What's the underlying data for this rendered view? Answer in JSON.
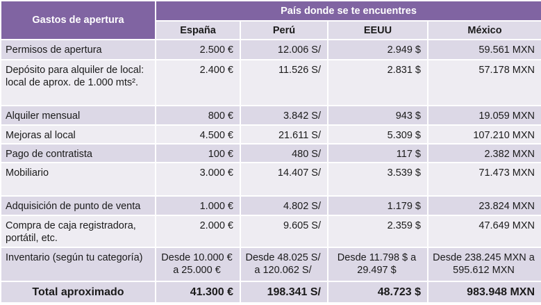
{
  "table": {
    "corner_label": "Gastos de apertura",
    "group_label": "País donde se te encuentres",
    "countries": [
      "España",
      "Perú",
      "EEUU",
      "México"
    ],
    "rows": [
      {
        "label": "Permisos de apertura",
        "values": [
          "2.500 €",
          "12.006 S/",
          "2.949 $",
          "59.561 MXN"
        ]
      },
      {
        "label": "Depósito para alquiler de local: local de aprox. de 1.000 mts².",
        "values": [
          "2.400 €",
          "11.526 S/",
          "2.831 $",
          "57.178 MXN"
        ]
      },
      {
        "label": "Alquiler mensual",
        "values": [
          "800 €",
          "3.842 S/",
          "943 $",
          "19.059 MXN"
        ]
      },
      {
        "label": "Mejoras al local",
        "values": [
          "4.500 €",
          "21.611 S/",
          "5.309 $",
          "107.210 MXN"
        ]
      },
      {
        "label": "Pago de contratista",
        "values": [
          "100 €",
          "480 S/",
          "117 $",
          "2.382 MXN"
        ]
      },
      {
        "label": "Mobiliario",
        "values": [
          "3.000 €",
          "14.407 S/",
          "3.539 $",
          "71.473 MXN"
        ]
      },
      {
        "label": "Adquisición de punto de venta",
        "values": [
          "1.000 €",
          "4.802 S/",
          "1.179 $",
          "23.824 MXN"
        ]
      },
      {
        "label": "Compra de caja registradora, portátil, etc.",
        "values": [
          "2.000 €",
          "9.605 S/",
          "2.359 $",
          "47.649 MXN"
        ]
      },
      {
        "label": "Inventario (según tu categoría)",
        "values": [
          "Desde 10.000 € a 25.000 €",
          "Desde 48.025 S/ a 120.062 S/",
          "Desde 11.798 $ a 29.497 $",
          "Desde 238.245 MXN a 595.612 MXN"
        ]
      }
    ],
    "total": {
      "label": "Total aproximado",
      "values": [
        "41.300 €",
        "198.341 S/",
        "48.723 $",
        "983.948 MXN"
      ]
    }
  },
  "colors": {
    "header_purple": "#8064a2",
    "row_band_dark": "#dcd8e6",
    "row_band_light": "#eeecf2"
  }
}
